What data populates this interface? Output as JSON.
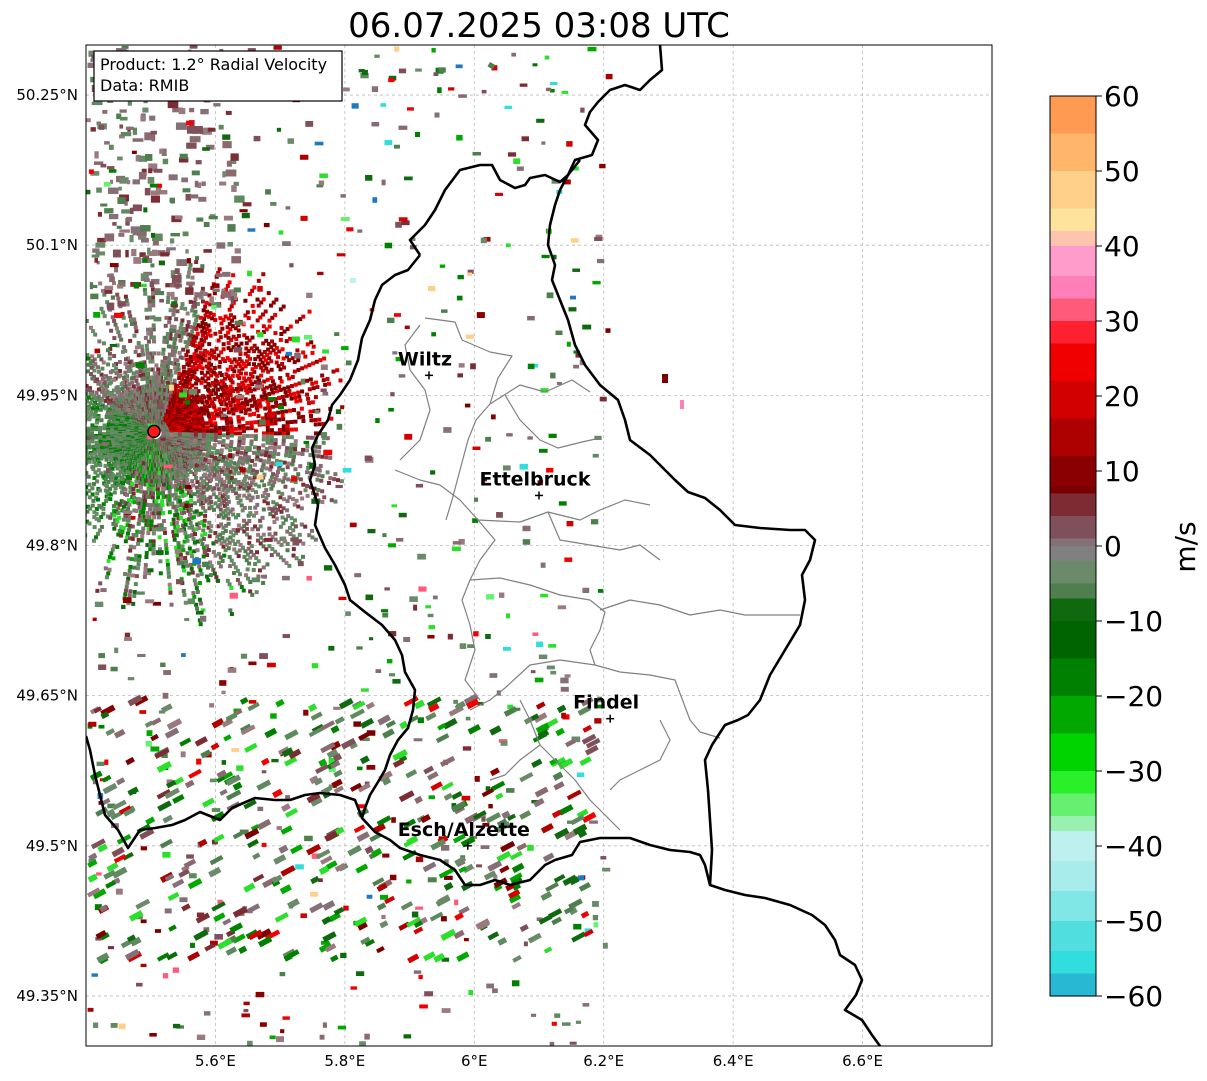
{
  "title": "06.07.2025 03:08 UTC",
  "info_box": {
    "product": "Product: 1.2° Radial Velocity",
    "data": "Data: RMIB"
  },
  "axes": {
    "lat_ticks": [
      {
        "value": 50.25,
        "label": "50.25°N"
      },
      {
        "value": 50.1,
        "label": "50.1°N"
      },
      {
        "value": 49.95,
        "label": "49.95°N"
      },
      {
        "value": 49.8,
        "label": "49.8°N"
      },
      {
        "value": 49.65,
        "label": "49.65°N"
      },
      {
        "value": 49.5,
        "label": "49.5°N"
      },
      {
        "value": 49.35,
        "label": "49.35°N"
      }
    ],
    "lon_ticks": [
      {
        "value": 5.6,
        "label": "5.6°E"
      },
      {
        "value": 5.8,
        "label": "5.8°E"
      },
      {
        "value": 6.0,
        "label": "6°E"
      },
      {
        "value": 6.2,
        "label": "6.2°E"
      },
      {
        "value": 6.4,
        "label": "6.4°E"
      },
      {
        "value": 6.6,
        "label": "6.6°E"
      }
    ],
    "lon_range": [
      5.4,
      6.8
    ],
    "lat_range": [
      49.3,
      50.3
    ],
    "grid": true
  },
  "cities": [
    {
      "name": "Wiltz",
      "lon": 5.93,
      "lat": 49.97
    },
    {
      "name": "Ettelbruck",
      "lon": 6.1,
      "lat": 49.85
    },
    {
      "name": "Findel",
      "lon": 6.21,
      "lat": 49.627
    },
    {
      "name": "Esch/Alzette",
      "lon": 5.99,
      "lat": 49.5
    }
  ],
  "radar_site": {
    "lon": 5.505,
    "lat": 49.914
  },
  "colorbar": {
    "label": "m/s",
    "range": [
      -60,
      60
    ],
    "tick_labels": [
      "60",
      "50",
      "40",
      "30",
      "20",
      "10",
      "0",
      "−10",
      "−20",
      "−30",
      "−40",
      "−50",
      "−60"
    ],
    "colors": {
      "orange": "#ff9a52",
      "red": "#f00000",
      "dark_red": "#7a0000",
      "neutral_grey": "#808080",
      "green": "#008a00",
      "cyan": "#30dede",
      "blue": "#1f78c4"
    }
  }
}
